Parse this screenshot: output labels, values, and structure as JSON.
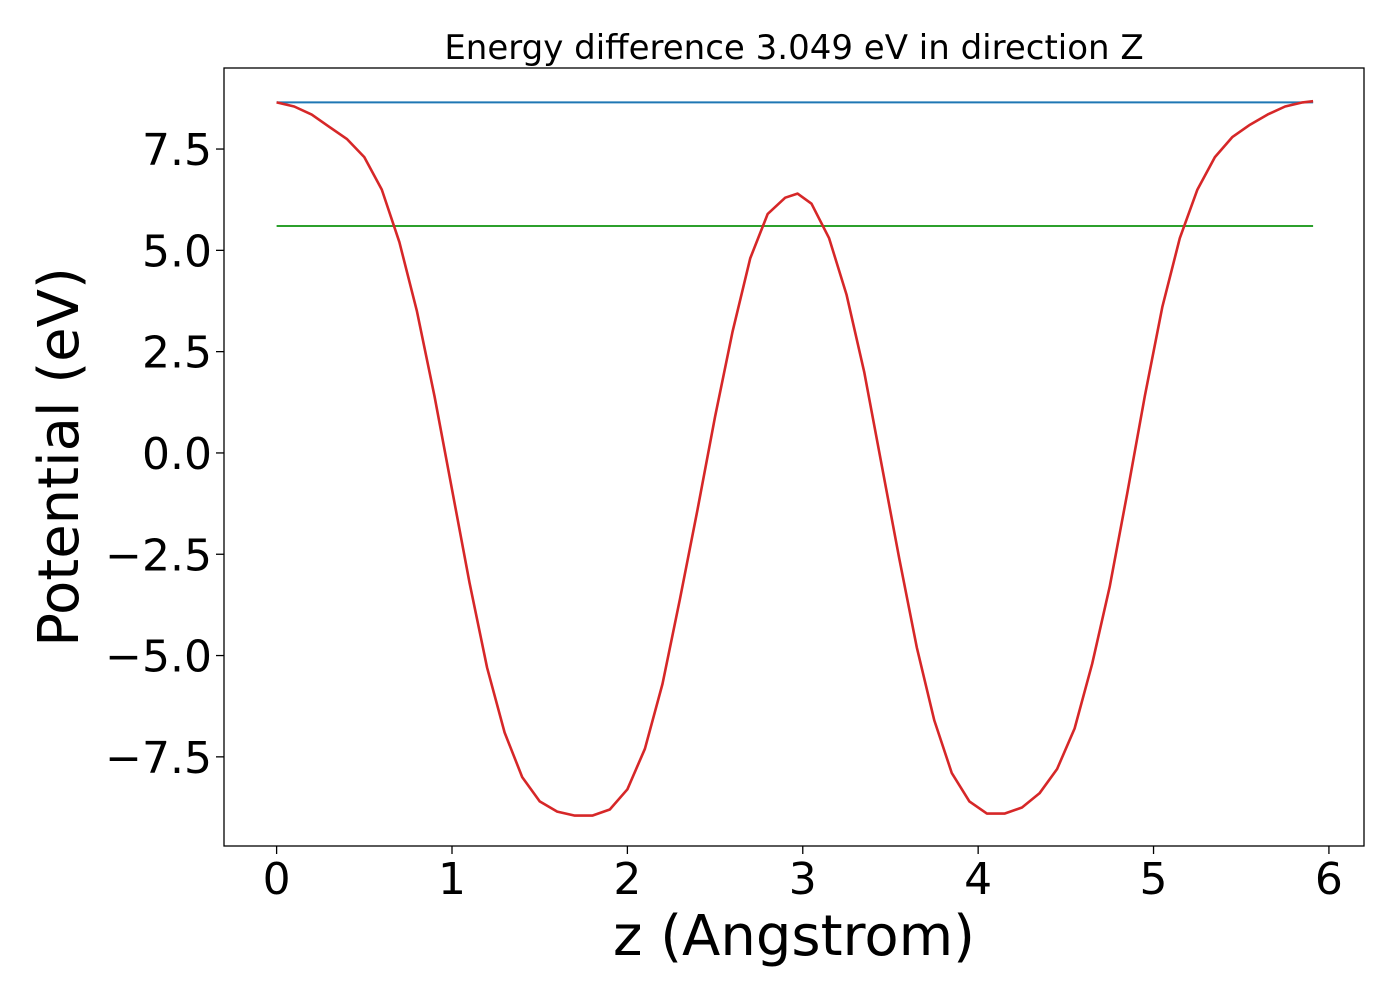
{
  "chart_data": {
    "type": "line",
    "title": "Energy difference 3.049 eV in direction Z",
    "xlabel": "z (Angstrom)",
    "ylabel": "Potential (eV)",
    "xlim": [
      -0.3,
      6.2
    ],
    "ylim": [
      -9.7,
      9.5
    ],
    "xticks": [
      0,
      1,
      2,
      3,
      4,
      5,
      6
    ],
    "xtick_labels": [
      "0",
      "1",
      "2",
      "3",
      "4",
      "5",
      "6"
    ],
    "yticks": [
      -7.5,
      -5.0,
      -2.5,
      0.0,
      2.5,
      5.0,
      7.5
    ],
    "ytick_labels": [
      "−7.5",
      "−5.0",
      "−2.5",
      "0.0",
      "2.5",
      "5.0",
      "7.5"
    ],
    "grid": false,
    "legend": "none",
    "series": [
      {
        "color": "#d62728",
        "x": [
          0.0,
          0.1,
          0.2,
          0.3,
          0.4,
          0.5,
          0.6,
          0.7,
          0.8,
          0.9,
          1.0,
          1.1,
          1.2,
          1.3,
          1.4,
          1.5,
          1.6,
          1.7,
          1.8,
          1.9,
          2.0,
          2.1,
          2.2,
          2.3,
          2.4,
          2.5,
          2.6,
          2.7,
          2.8,
          2.9,
          2.97,
          3.05,
          3.15,
          3.25,
          3.35,
          3.45,
          3.55,
          3.65,
          3.75,
          3.85,
          3.95,
          4.05,
          4.15,
          4.25,
          4.35,
          4.45,
          4.55,
          4.65,
          4.75,
          4.85,
          4.95,
          5.05,
          5.15,
          5.25,
          5.35,
          5.45,
          5.55,
          5.65,
          5.75,
          5.85,
          5.91
        ],
        "y": [
          8.65,
          8.55,
          8.35,
          8.05,
          7.75,
          7.3,
          6.5,
          5.2,
          3.5,
          1.4,
          -0.9,
          -3.2,
          -5.3,
          -6.9,
          -8.0,
          -8.6,
          -8.85,
          -8.95,
          -8.95,
          -8.8,
          -8.3,
          -7.3,
          -5.7,
          -3.6,
          -1.4,
          0.9,
          3.0,
          4.8,
          5.9,
          6.3,
          6.4,
          6.15,
          5.3,
          3.9,
          2.0,
          -0.3,
          -2.6,
          -4.8,
          -6.6,
          -7.9,
          -8.6,
          -8.9,
          -8.9,
          -8.75,
          -8.4,
          -7.8,
          -6.8,
          -5.2,
          -3.3,
          -1.0,
          1.4,
          3.6,
          5.3,
          6.5,
          7.3,
          7.8,
          8.1,
          8.35,
          8.55,
          8.65,
          8.68
        ]
      },
      {
        "color": "#1f77b4",
        "x": [
          0.0,
          5.91
        ],
        "y": [
          8.65,
          8.65
        ]
      },
      {
        "color": "#2ca02c",
        "x": [
          0.0,
          5.91
        ],
        "y": [
          5.6,
          5.6
        ]
      }
    ]
  }
}
